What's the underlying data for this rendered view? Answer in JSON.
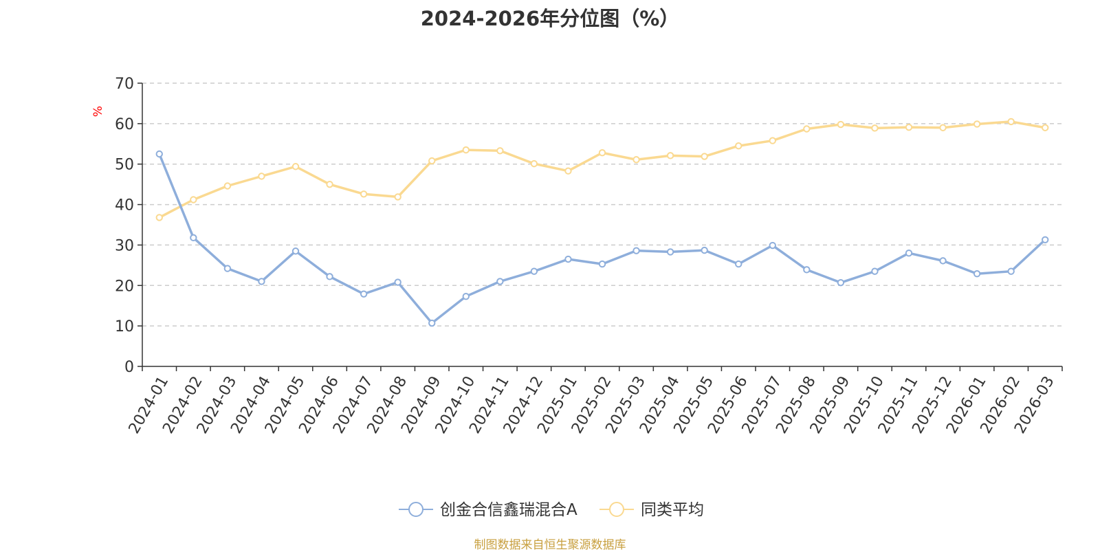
{
  "title": "2024-2026年分位图（%）",
  "source": "制图数据来自恒生聚源数据库",
  "chart_data": {
    "type": "line",
    "title": "2024-2026年分位图（%）",
    "ylabel": "%",
    "xlabel": "",
    "ylim": [
      0,
      70
    ],
    "yticks": [
      0,
      10,
      20,
      30,
      40,
      50,
      60,
      70
    ],
    "grid": true,
    "legend_position": "bottom-center",
    "categories": [
      "2024-01",
      "2024-02",
      "2024-03",
      "2024-04",
      "2024-05",
      "2024-06",
      "2024-07",
      "2024-08",
      "2024-09",
      "2024-10",
      "2024-11",
      "2024-12",
      "2025-01",
      "2025-02",
      "2025-03",
      "2025-04",
      "2025-05",
      "2025-06",
      "2025-07",
      "2025-08",
      "2025-09",
      "2025-10",
      "2025-11",
      "2025-12",
      "2026-01",
      "2026-02",
      "2026-03"
    ],
    "series": [
      {
        "name": "创金合信鑫瑞混合A",
        "color": "#8eaedb",
        "values": [
          52.5,
          31.8,
          24.2,
          21.0,
          28.5,
          22.2,
          17.9,
          20.8,
          10.7,
          17.3,
          21.0,
          23.5,
          26.5,
          25.3,
          28.6,
          28.3,
          28.7,
          25.3,
          29.9,
          23.9,
          20.7,
          23.5,
          28.0,
          26.1,
          22.9,
          23.5,
          31.3
        ]
      },
      {
        "name": "同类平均",
        "color": "#fad991",
        "values": [
          36.8,
          41.2,
          44.6,
          47.0,
          49.4,
          45.0,
          42.6,
          41.9,
          50.8,
          53.5,
          53.3,
          50.1,
          48.3,
          52.8,
          51.1,
          52.1,
          51.9,
          54.5,
          55.8,
          58.7,
          59.8,
          58.9,
          59.1,
          59.0,
          59.9,
          60.5,
          59.0
        ]
      }
    ]
  }
}
